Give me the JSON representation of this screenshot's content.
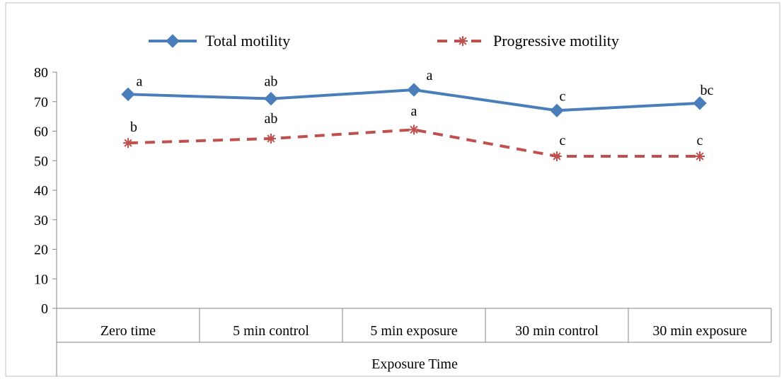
{
  "chart_data": {
    "type": "line",
    "title": "",
    "xlabel": "Exposure Time",
    "ylabel": "",
    "ylim": [
      0,
      80
    ],
    "yticks": [
      0,
      10,
      20,
      30,
      40,
      50,
      60,
      70,
      80
    ],
    "grid": false,
    "legend_position": "top",
    "categories": [
      "Zero time",
      "5 min control",
      "5 min exposure",
      "30 min control",
      "30 min exposure"
    ],
    "series": [
      {
        "name": "Total motility",
        "color": "#4a7ebb",
        "line_style": "solid",
        "marker": "diamond",
        "values": [
          72.5,
          71,
          74,
          67,
          69.5
        ],
        "labels": [
          "a",
          "ab",
          "a",
          "c",
          "bc"
        ]
      },
      {
        "name": "Progressive motility",
        "color": "#c0504d",
        "line_style": "dashed",
        "marker": "asterisk",
        "values": [
          56,
          57.5,
          60.5,
          51.5,
          51.5
        ],
        "labels": [
          "b",
          "ab",
          "a",
          "c",
          "c"
        ]
      }
    ]
  }
}
